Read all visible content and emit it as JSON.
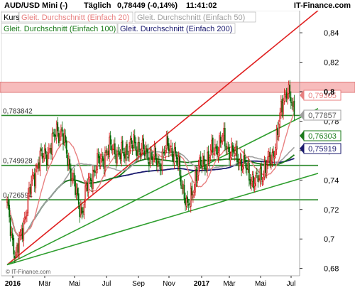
{
  "header": {
    "title": "AUD/USD Mini (-)",
    "period": "Täglich",
    "quote": "0,78449 (-0,14%)",
    "time": "11:41:02",
    "brand": "IT-Finance.com"
  },
  "legend": {
    "items": [
      {
        "label": "Kurs",
        "color": "#000000"
      },
      {
        "label": "Gleit. Durchschnitt (Einfach 20)",
        "color": "#e88080"
      },
      {
        "label": "Gleit. Durchschnitt (Einfach 50)",
        "color": "#a0a0a0"
      },
      {
        "label": "Gleit. Durchschnitt (Einfach 100)",
        "color": "#1a7a1a"
      },
      {
        "label": "Gleit. Durchschnitt (Einfach 200)",
        "color": "#1a1a6e"
      }
    ]
  },
  "watermark": "© IT-Finance.com",
  "colors": {
    "candle_up": "#cc0000",
    "candle_down": "#006600",
    "resistance_zone": "#f4a0a0",
    "horizontal_line": "#2e8b2e",
    "trend_red": "#e02020",
    "trend_green": "#2e9e2e"
  },
  "chart_data": {
    "type": "candlestick",
    "x": [
      "2016-01",
      "2016-03",
      "2016-05",
      "2016-07",
      "2016-09",
      "2016-11",
      "2017-01",
      "2017-03",
      "2017-05",
      "2017-07"
    ],
    "x_tick_labels": [
      "2016",
      "Mär",
      "Mai",
      "Jul",
      "Sep",
      "Nov",
      "2017",
      "Mär",
      "Mai",
      "Jul"
    ],
    "ylim": [
      0.675,
      0.855
    ],
    "y_ticks": [
      0.68,
      0.7,
      0.72,
      0.74,
      0.76,
      0.78,
      0.8,
      0.82,
      0.84
    ],
    "y_tick_labels": [
      "0,68",
      "0,7",
      "0,72",
      "0,74",
      "0,76",
      "0,78",
      "0,8",
      "0,82",
      "0,84"
    ],
    "price_anchors": [
      [
        0,
        0.722
      ],
      [
        4,
        0.703
      ],
      [
        8,
        0.688
      ],
      [
        12,
        0.7
      ],
      [
        17,
        0.719
      ],
      [
        22,
        0.737
      ],
      [
        28,
        0.752
      ],
      [
        34,
        0.757
      ],
      [
        40,
        0.762
      ],
      [
        45,
        0.775
      ],
      [
        50,
        0.771
      ],
      [
        55,
        0.755
      ],
      [
        60,
        0.74
      ],
      [
        64,
        0.726
      ],
      [
        68,
        0.719
      ],
      [
        72,
        0.733
      ],
      [
        78,
        0.745
      ],
      [
        84,
        0.753
      ],
      [
        90,
        0.758
      ],
      [
        96,
        0.763
      ],
      [
        102,
        0.756
      ],
      [
        108,
        0.76
      ],
      [
        115,
        0.764
      ],
      [
        120,
        0.762
      ],
      [
        126,
        0.758
      ],
      [
        132,
        0.756
      ],
      [
        138,
        0.75
      ],
      [
        142,
        0.758
      ],
      [
        146,
        0.763
      ],
      [
        150,
        0.761
      ],
      [
        154,
        0.754
      ],
      [
        158,
        0.74
      ],
      [
        161,
        0.732
      ],
      [
        164,
        0.72
      ],
      [
        167,
        0.727
      ],
      [
        171,
        0.742
      ],
      [
        176,
        0.75
      ],
      [
        181,
        0.753
      ],
      [
        186,
        0.759
      ],
      [
        191,
        0.763
      ],
      [
        196,
        0.768
      ],
      [
        201,
        0.761
      ],
      [
        206,
        0.758
      ],
      [
        211,
        0.754
      ],
      [
        216,
        0.75
      ],
      [
        221,
        0.742
      ],
      [
        226,
        0.738
      ],
      [
        231,
        0.744
      ],
      [
        236,
        0.75
      ],
      [
        241,
        0.756
      ],
      [
        245,
        0.768
      ],
      [
        248,
        0.782
      ],
      [
        251,
        0.795
      ],
      [
        254,
        0.802
      ],
      [
        257,
        0.796
      ],
      [
        259,
        0.788
      ],
      [
        261,
        0.7845
      ]
    ],
    "horizontal_levels": [
      {
        "value": 0.783842,
        "label": "0,783842"
      },
      {
        "value": 0.749928,
        "label": "0,749928"
      },
      {
        "value": 0.726594,
        "label": "0,726594"
      }
    ],
    "resistance_zone": [
      0.7995,
      0.8065
    ],
    "trend_lines": [
      {
        "color": "red",
        "from": [
          0,
          0.6825
        ],
        "to": [
          262,
          0.8425
        ]
      },
      {
        "color": "green",
        "from": [
          0,
          0.6825
        ],
        "to": [
          262,
          0.7808
        ]
      },
      {
        "color": "green",
        "from": [
          0,
          0.6825
        ],
        "to": [
          262,
          0.74
        ]
      }
    ],
    "value_badges": [
      {
        "value": 0.79305,
        "label": "0,79305",
        "color": "#e88080"
      },
      {
        "value": 0.77857,
        "label": "0,77857",
        "color": "#a0a0a0"
      },
      {
        "value": 0.76303,
        "label": "0,76303",
        "color": "#1a7a1a"
      },
      {
        "value": 0.75919,
        "label": "0,75919",
        "color": "#1a1a6e"
      }
    ],
    "current_value_label": "0,8"
  }
}
